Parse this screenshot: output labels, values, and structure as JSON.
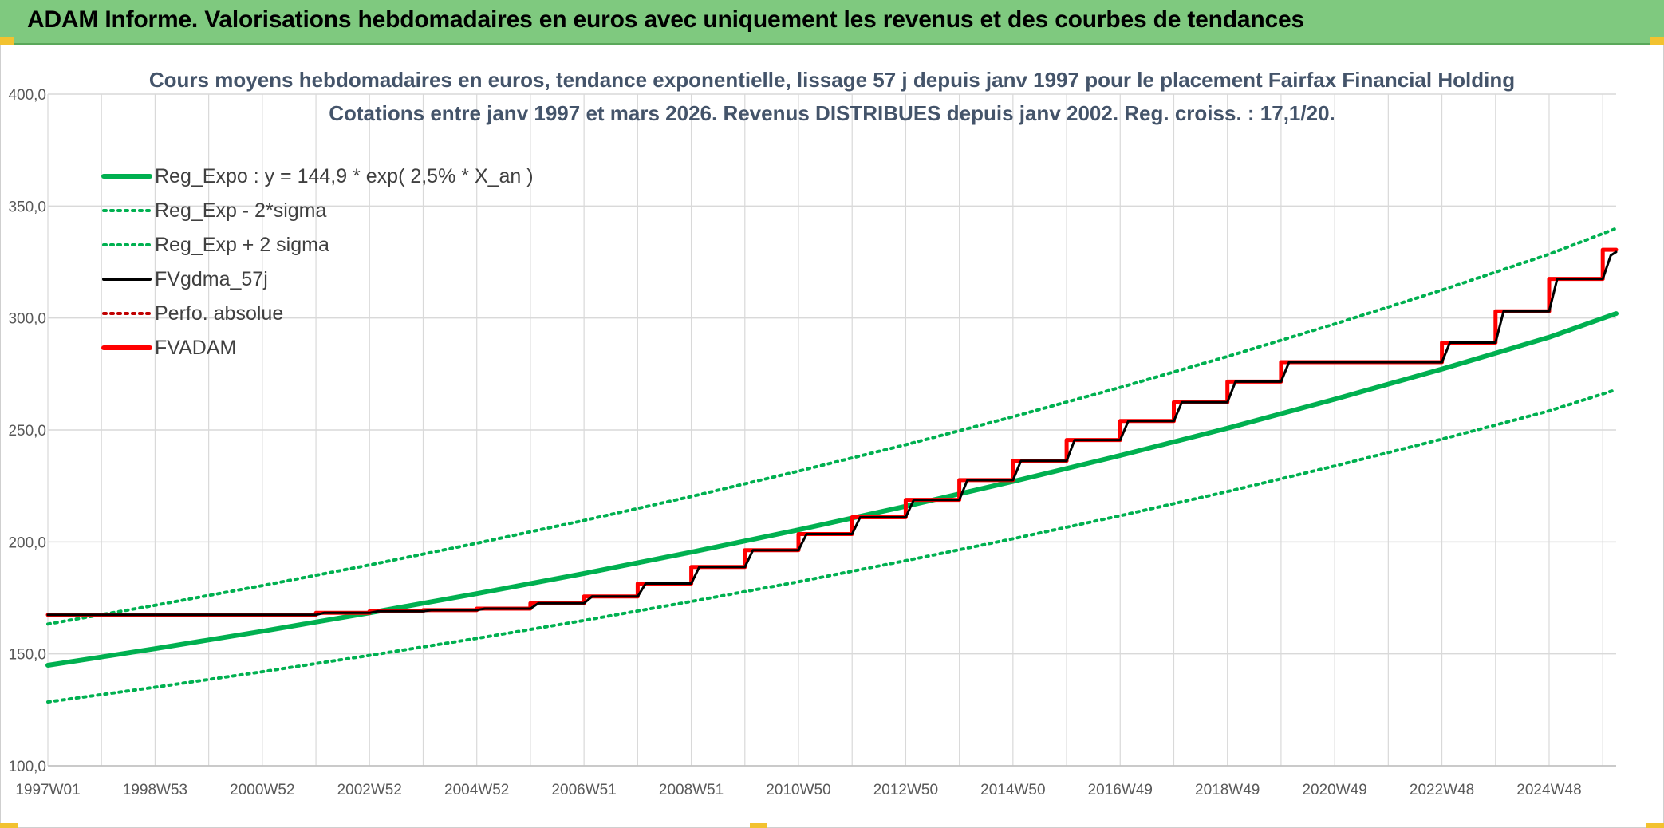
{
  "banner": {
    "title": "ADAM Informe. Valorisations hebdomadaires en euros avec uniquement les revenus et des courbes de tendances"
  },
  "colors": {
    "banner_bg": "#7fc97f",
    "trend_green": "#00b050",
    "gdma_black": "#000000",
    "adam_red": "#ff0000",
    "perf_red": "#c00000",
    "grid": "#d9d9d9",
    "subtitle": "#44546a"
  },
  "chart_data": {
    "type": "line",
    "title_lines": [
      "Cours moyens hebdomadaires en euros, tendance exponentielle, lissage 57 j depuis janv 1997 pour le placement Fairfax Financial Holding",
      "Cotations entre janv 1997 et mars 2026. Revenus DISTRIBUES depuis janv 2002. Reg. croiss. : 17,1/20."
    ],
    "xlabel": "",
    "ylabel": "",
    "x_range": [
      1997.0,
      2026.25
    ],
    "ylim": [
      100,
      400
    ],
    "y_ticks": [
      "100,0",
      "150,0",
      "200,0",
      "250,0",
      "300,0",
      "350,0",
      "400,0"
    ],
    "y_tick_values": [
      100,
      150,
      200,
      250,
      300,
      350,
      400
    ],
    "x_tick_labels": [
      "1997W01",
      "1998W53",
      "2000W52",
      "2002W52",
      "2004W52",
      "2006W51",
      "2008W51",
      "2010W50",
      "2012W50",
      "2014W50",
      "2016W49",
      "2018W49",
      "2020W49",
      "2022W48",
      "2024W48"
    ],
    "x_tick_values": [
      1997.0,
      1999.0,
      2001.0,
      2003.0,
      2005.0,
      2007.0,
      2009.0,
      2011.0,
      2013.0,
      2015.0,
      2017.0,
      2019.0,
      2021.0,
      2023.0,
      2025.0
    ],
    "grid": true,
    "legend_position": "top-left",
    "legend": [
      {
        "name": "Reg_Expo : y = 144,9 * exp( 2,5% *  X_an )",
        "color": "#00b050",
        "style": "solid-thick"
      },
      {
        "name": "Reg_Exp - 2*sigma",
        "color": "#00b050",
        "style": "dotted"
      },
      {
        "name": "Reg_Exp + 2 sigma",
        "color": "#00b050",
        "style": "dotted"
      },
      {
        "name": "FVgdma_57j",
        "color": "#000000",
        "style": "solid"
      },
      {
        "name": "Perfo. absolue",
        "color": "#c00000",
        "style": "dotted"
      },
      {
        "name": "FVADAM",
        "color": "#ff0000",
        "style": "solid-thick"
      }
    ],
    "series": [
      {
        "name": "Reg_Expo : y = 144,9 * exp( 2,5% *  X_an )",
        "x": [
          1997,
          1999,
          2001,
          2003,
          2005,
          2007,
          2009,
          2011,
          2013,
          2015,
          2017,
          2019,
          2021,
          2023,
          2025,
          2026.25
        ],
        "values": [
          144.9,
          152.3,
          160.1,
          168.3,
          176.9,
          185.9,
          195.4,
          205.4,
          215.9,
          227.0,
          238.6,
          250.8,
          263.7,
          277.2,
          291.4,
          302.0
        ]
      },
      {
        "name": "Reg_Exp - 2*sigma",
        "x": [
          1997,
          1999,
          2001,
          2003,
          2005,
          2007,
          2009,
          2011,
          2013,
          2015,
          2017,
          2019,
          2021,
          2023,
          2025,
          2026.25
        ],
        "values": [
          128.5,
          135.1,
          142.0,
          149.3,
          156.9,
          164.9,
          173.4,
          182.2,
          191.6,
          201.4,
          211.7,
          222.5,
          233.9,
          245.9,
          258.5,
          268.0
        ]
      },
      {
        "name": "Reg_Exp + 2 sigma",
        "x": [
          1997,
          1999,
          2001,
          2003,
          2005,
          2007,
          2009,
          2011,
          2013,
          2015,
          2017,
          2019,
          2021,
          2023,
          2025,
          2026.25
        ],
        "values": [
          163.3,
          171.7,
          180.5,
          189.7,
          199.4,
          209.6,
          220.3,
          231.6,
          243.4,
          255.9,
          269.0,
          282.8,
          297.3,
          312.5,
          328.5,
          340.0
        ]
      },
      {
        "name": "FVADAM",
        "x": [
          1997.0,
          2002.0,
          2002.0,
          2003.0,
          2003.0,
          2004.0,
          2004.0,
          2005.0,
          2005.0,
          2006.0,
          2006.0,
          2007.0,
          2007.0,
          2008.0,
          2008.0,
          2009.0,
          2009.0,
          2010.0,
          2010.0,
          2011.0,
          2011.0,
          2012.0,
          2012.0,
          2013.0,
          2013.0,
          2014.0,
          2014.0,
          2015.0,
          2015.0,
          2016.0,
          2016.0,
          2017.0,
          2017.0,
          2018.0,
          2018.0,
          2019.0,
          2019.0,
          2020.0,
          2020.0,
          2021.0,
          2021.0,
          2023.0,
          2023.0,
          2024.0,
          2024.0,
          2025.0,
          2025.0,
          2026.0,
          2026.0,
          2026.25
        ],
        "values": [
          167.4,
          167.4,
          168.3,
          168.3,
          169.0,
          169.0,
          169.5,
          169.5,
          170.2,
          170.2,
          172.6,
          172.6,
          175.6,
          175.6,
          181.4,
          181.4,
          188.8,
          188.8,
          196.3,
          196.3,
          203.5,
          203.5,
          211.0,
          211.0,
          218.8,
          218.8,
          227.6,
          227.6,
          236.2,
          236.2,
          245.5,
          245.5,
          254.0,
          254.0,
          262.4,
          262.4,
          271.6,
          271.6,
          280.3,
          280.3,
          280.3,
          280.3,
          289.0,
          289.0,
          303.0,
          303.0,
          317.5,
          317.5,
          330.5,
          330.5
        ]
      },
      {
        "name": "FVgdma_57j",
        "x": [
          1997.0,
          2002.0,
          2002.15,
          2003.0,
          2003.15,
          2004.0,
          2004.15,
          2005.0,
          2005.15,
          2006.0,
          2006.15,
          2007.0,
          2007.15,
          2008.0,
          2008.15,
          2009.0,
          2009.15,
          2010.0,
          2010.15,
          2011.0,
          2011.15,
          2012.0,
          2012.15,
          2013.0,
          2013.15,
          2014.0,
          2014.15,
          2015.0,
          2015.15,
          2016.0,
          2016.15,
          2017.0,
          2017.15,
          2018.0,
          2018.15,
          2019.0,
          2019.15,
          2020.0,
          2020.15,
          2021.0,
          2021.15,
          2023.0,
          2023.15,
          2024.0,
          2024.15,
          2025.0,
          2025.15,
          2026.0,
          2026.15,
          2026.25
        ],
        "values": [
          167.4,
          167.4,
          168.3,
          168.3,
          169.0,
          169.0,
          169.5,
          169.5,
          170.2,
          170.2,
          172.6,
          172.6,
          175.6,
          175.6,
          181.4,
          181.4,
          188.8,
          188.8,
          196.3,
          196.3,
          203.5,
          203.5,
          211.0,
          211.0,
          218.8,
          218.8,
          227.6,
          227.6,
          236.2,
          236.2,
          245.5,
          245.5,
          254.0,
          254.0,
          262.4,
          262.4,
          271.6,
          271.6,
          280.3,
          280.3,
          280.3,
          280.3,
          289.0,
          289.0,
          303.0,
          303.0,
          317.5,
          317.5,
          328.0,
          329.5
        ]
      }
    ]
  }
}
